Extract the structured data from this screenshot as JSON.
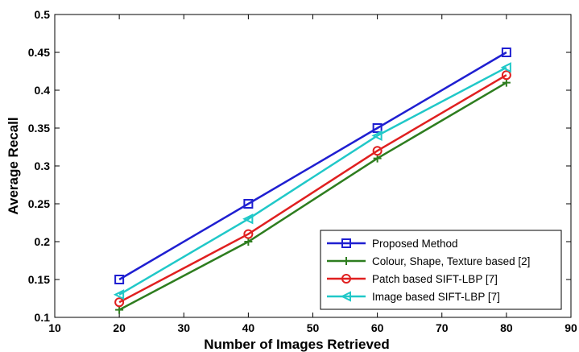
{
  "chart_data": {
    "type": "line",
    "title": "",
    "xlabel": "Number of Images Retrieved",
    "ylabel": "Average Recall",
    "xlim": [
      10,
      90
    ],
    "ylim": [
      0.1,
      0.5
    ],
    "xticks": [
      10,
      20,
      30,
      40,
      50,
      60,
      70,
      80,
      90
    ],
    "yticks": [
      0.1,
      0.15,
      0.2,
      0.25,
      0.3,
      0.35,
      0.4,
      0.45,
      0.5
    ],
    "xtick_labels": [
      "10",
      "20",
      "30",
      "40",
      "50",
      "60",
      "70",
      "80",
      "90"
    ],
    "ytick_labels": [
      "0.1",
      "0.15",
      "0.2",
      "0.25",
      "0.3",
      "0.35",
      "0.4",
      "0.45",
      "0.5"
    ],
    "grid": false,
    "legend_position": "bottom-right",
    "x": [
      20,
      40,
      60,
      80
    ],
    "series": [
      {
        "name": "Proposed Method",
        "values": [
          0.15,
          0.25,
          0.35,
          0.45
        ],
        "color": "#1f1fd1",
        "marker": "square"
      },
      {
        "name": "Colour, Shape, Texture based [2]",
        "values": [
          0.11,
          0.2,
          0.31,
          0.41
        ],
        "color": "#2e7d1f",
        "marker": "plus"
      },
      {
        "name": "Patch based SIFT-LBP [7]",
        "values": [
          0.12,
          0.21,
          0.32,
          0.42
        ],
        "color": "#e02020",
        "marker": "circle"
      },
      {
        "name": "Image based SIFT-LBP [7]",
        "values": [
          0.13,
          0.23,
          0.34,
          0.43
        ],
        "color": "#20c8c8",
        "marker": "triangle-left"
      }
    ]
  }
}
